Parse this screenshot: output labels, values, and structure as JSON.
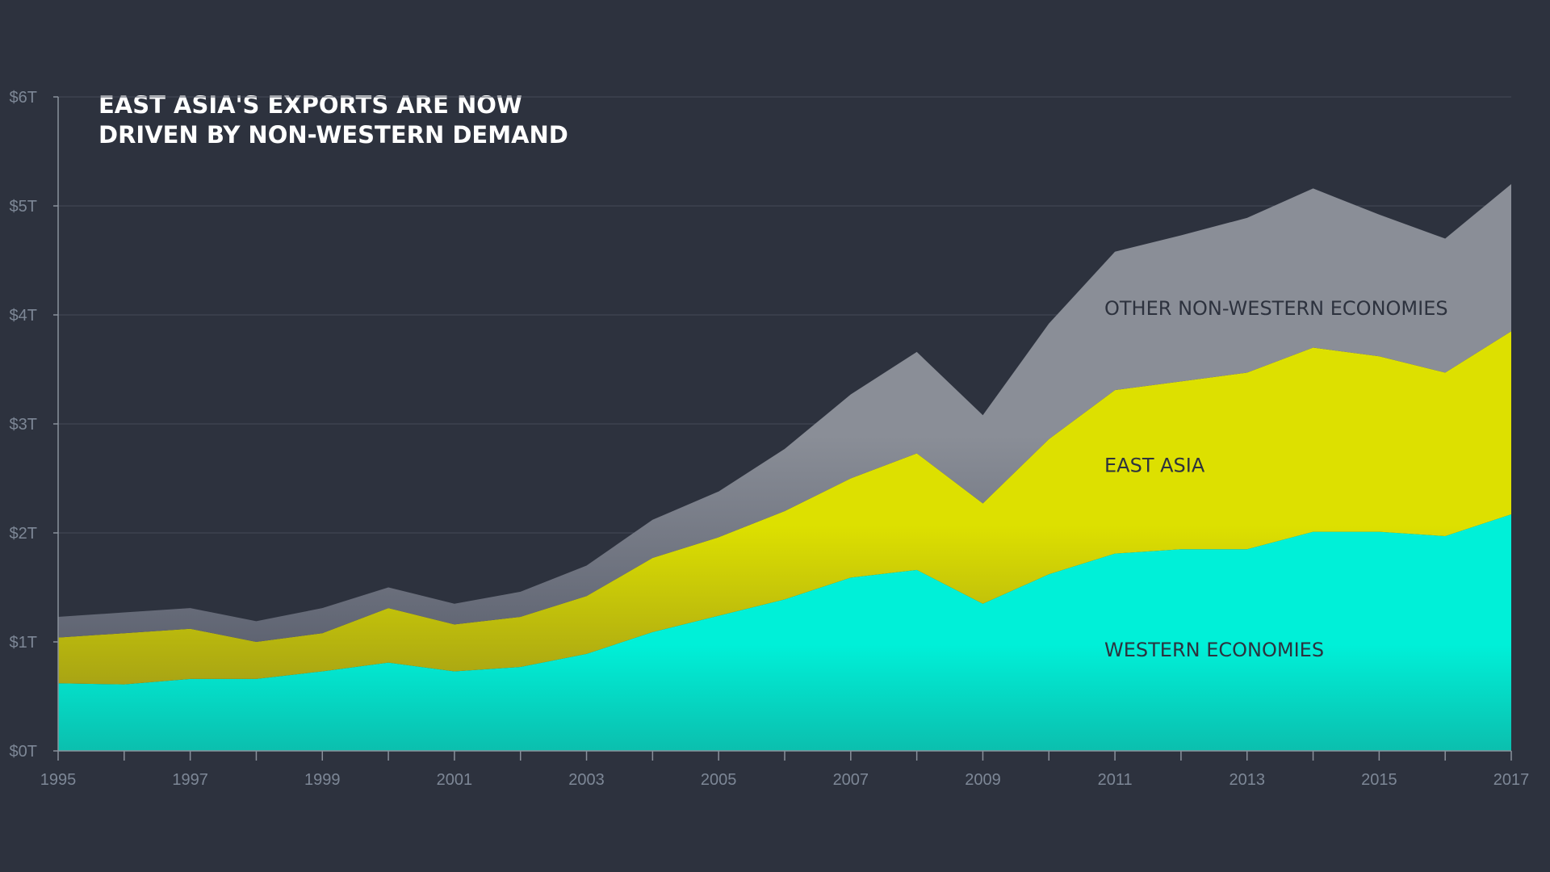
{
  "title_lines": [
    "EAST ASIA'S EXPORTS ARE NOW",
    "DRIVEN BY NON-WESTERN DEMAND"
  ],
  "colors": {
    "background": "#2d323e",
    "western": "#00f0d8",
    "western_bottom": "#0bbfae",
    "east_asia": "#dde000",
    "east_asia_bottom": "#a8a414",
    "other": "#8a8e97",
    "other_bottom": "#5f6472",
    "grid": "#454b58",
    "axis": "#8a919c",
    "tick_text": "#7d8796",
    "label_text": "#2d323e"
  },
  "chart_data": {
    "type": "area",
    "stacked": true,
    "title": "EAST ASIA'S EXPORTS ARE NOW DRIVEN BY NON-WESTERN DEMAND",
    "xlabel": "",
    "ylabel": "",
    "x": [
      1995,
      1996,
      1997,
      1998,
      1999,
      2000,
      2001,
      2002,
      2003,
      2004,
      2005,
      2006,
      2007,
      2008,
      2009,
      2010,
      2011,
      2012,
      2013,
      2014,
      2015,
      2016,
      2017
    ],
    "xlim": [
      1995,
      2017
    ],
    "ylim": [
      0,
      6
    ],
    "y_ticks": [
      {
        "value": 0,
        "label": "$0T"
      },
      {
        "value": 1,
        "label": "$1T"
      },
      {
        "value": 2,
        "label": "$2T"
      },
      {
        "value": 3,
        "label": "$3T"
      },
      {
        "value": 4,
        "label": "$4T"
      },
      {
        "value": 5,
        "label": "$5T"
      },
      {
        "value": 6,
        "label": "$6T"
      }
    ],
    "x_tick_labels": [
      "1995",
      "1997",
      "1999",
      "2001",
      "2003",
      "2005",
      "2007",
      "2009",
      "2011",
      "2013",
      "2015",
      "2017"
    ],
    "grid": true,
    "series": [
      {
        "name": "WESTERN ECONOMIES",
        "values": [
          0.62,
          0.61,
          0.66,
          0.66,
          0.73,
          0.81,
          0.73,
          0.77,
          0.89,
          1.09,
          1.24,
          1.39,
          1.59,
          1.66,
          1.35,
          1.62,
          1.81,
          1.85,
          1.85,
          2.01,
          2.01,
          1.97,
          2.17
        ]
      },
      {
        "name": "EAST ASIA",
        "values": [
          0.42,
          0.47,
          0.46,
          0.34,
          0.35,
          0.5,
          0.43,
          0.46,
          0.53,
          0.68,
          0.72,
          0.81,
          0.91,
          1.07,
          0.92,
          1.24,
          1.5,
          1.54,
          1.62,
          1.69,
          1.61,
          1.5,
          1.68
        ]
      },
      {
        "name": "OTHER NON-WESTERN ECONOMIES",
        "values": [
          0.19,
          0.19,
          0.19,
          0.19,
          0.23,
          0.19,
          0.19,
          0.23,
          0.28,
          0.35,
          0.42,
          0.57,
          0.77,
          0.93,
          0.81,
          1.06,
          1.27,
          1.34,
          1.42,
          1.46,
          1.3,
          1.23,
          1.35
        ]
      }
    ]
  }
}
